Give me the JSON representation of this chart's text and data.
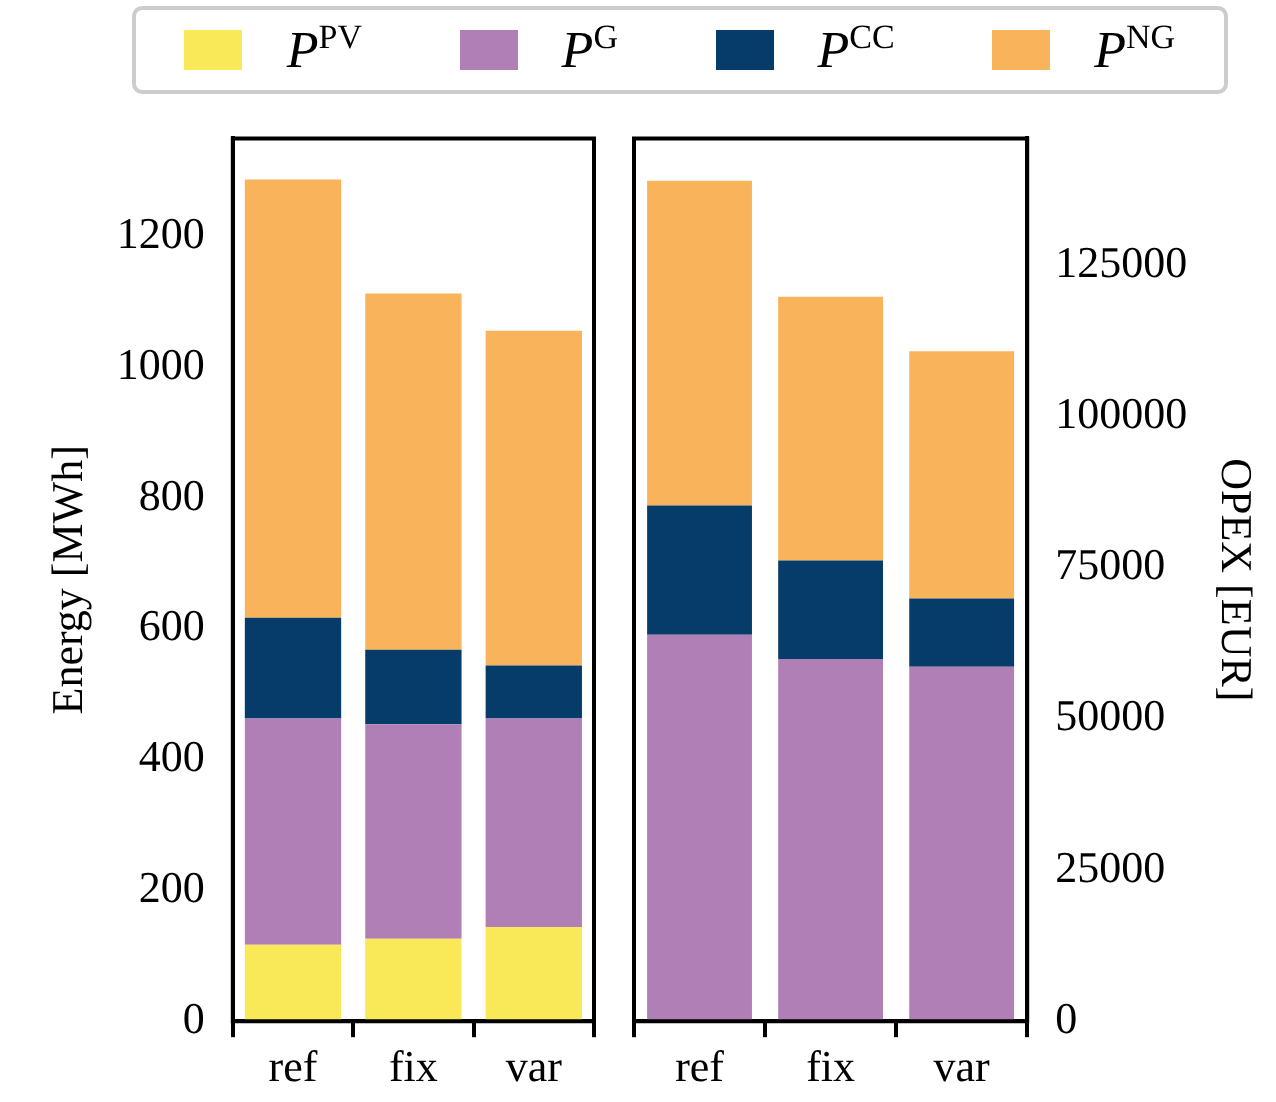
{
  "chart_data": [
    {
      "type": "bar",
      "stacked": true,
      "ylabel": "Energy [MWh]",
      "categories": [
        "ref",
        "fix",
        "var"
      ],
      "ylim": [
        0,
        1350
      ],
      "yticks": [
        0,
        200,
        400,
        600,
        800,
        1000,
        1200
      ],
      "grid": false,
      "legend": "top",
      "series": [
        {
          "name": "P$^{PV}$",
          "color": "#f9e858",
          "values": [
            117,
            126,
            144
          ]
        },
        {
          "name": "P$^{G}$",
          "color": "#b07fb6",
          "values": [
            346,
            328,
            319
          ]
        },
        {
          "name": "P$^{CC}$",
          "color": "#053c6a",
          "values": [
            154,
            114,
            81
          ]
        },
        {
          "name": "P$^{NG}$",
          "color": "#f9b35b",
          "values": [
            670,
            545,
            512
          ]
        }
      ]
    },
    {
      "type": "bar",
      "stacked": true,
      "y2label": "OPEX [EUR]",
      "categories": [
        "ref",
        "fix",
        "var"
      ],
      "y2lim": [
        0,
        146000
      ],
      "y2ticks": [
        0,
        25000,
        50000,
        75000,
        100000,
        125000
      ],
      "grid": false,
      "series": [
        {
          "color": "#b07fb6",
          "axis": "y2",
          "values": [
            63900,
            59900,
            58600
          ]
        },
        {
          "color": "#053c6a",
          "axis": "y2",
          "values": [
            21400,
            16300,
            11300
          ]
        },
        {
          "color": "#f9b35b",
          "axis": "y2",
          "values": [
            53700,
            43600,
            40900
          ]
        }
      ]
    }
  ]
}
